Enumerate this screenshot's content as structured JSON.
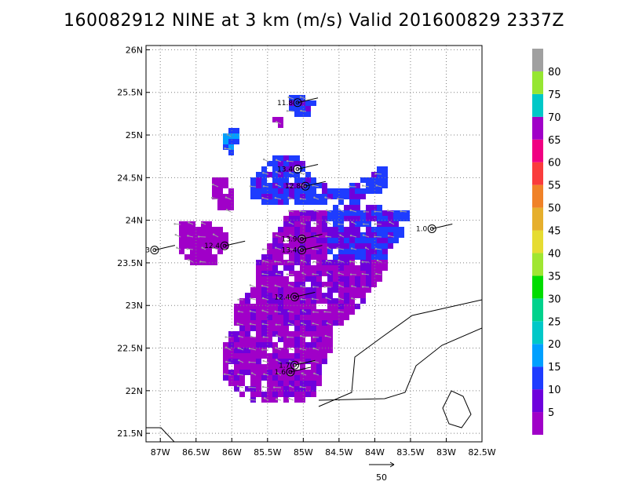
{
  "title": "160082912 NINE at 3 km (m/s) Valid 201600829 2337Z",
  "map": {
    "lon_range": [
      -87.2,
      -82.5
    ],
    "lat_range": [
      21.4,
      26.05
    ],
    "lon_ticks": [
      {
        "v": -87.0,
        "label": "87W"
      },
      {
        "v": -86.5,
        "label": "86.5W"
      },
      {
        "v": -86.0,
        "label": "86W"
      },
      {
        "v": -85.5,
        "label": "85.5W"
      },
      {
        "v": -85.0,
        "label": "85W"
      },
      {
        "v": -84.5,
        "label": "84.5W"
      },
      {
        "v": -84.0,
        "label": "84W"
      },
      {
        "v": -83.5,
        "label": "83.5W"
      },
      {
        "v": -83.0,
        "label": "83W"
      },
      {
        "v": -82.5,
        "label": "82.5W"
      }
    ],
    "lat_ticks": [
      {
        "v": 21.5,
        "label": "21.5N"
      },
      {
        "v": 22.0,
        "label": "22N"
      },
      {
        "v": 22.5,
        "label": "22.5N"
      },
      {
        "v": 23.0,
        "label": "23N"
      },
      {
        "v": 23.5,
        "label": "23.5N"
      },
      {
        "v": 24.0,
        "label": "24N"
      },
      {
        "v": 24.5,
        "label": "24.5N"
      },
      {
        "v": 25.0,
        "label": "25N"
      },
      {
        "v": 25.5,
        "label": "25.5N"
      },
      {
        "v": 26.0,
        "label": "26N"
      }
    ],
    "grid": true
  },
  "colorbar": {
    "levels": [
      "5",
      "10",
      "15",
      "20",
      "25",
      "30",
      "35",
      "40",
      "45",
      "50",
      "55",
      "60",
      "65",
      "70",
      "75",
      "80"
    ],
    "colors": [
      "#a000c8",
      "#6e00dc",
      "#1e3cff",
      "#00a0ff",
      "#00c8c8",
      "#00d28c",
      "#00dc00",
      "#a0e632",
      "#e6dc32",
      "#e6af2d",
      "#f08228",
      "#fa3c3c",
      "#f00082",
      "#a000c8",
      "#00c8c8",
      "#96e632",
      "#a0a0a0"
    ]
  },
  "observations": [
    {
      "label": "11.8",
      "lon": -85.08,
      "lat": 25.38
    },
    {
      "label": "13.4",
      "lon": -85.08,
      "lat": 24.6
    },
    {
      "label": "12.8",
      "lon": -84.97,
      "lat": 24.4
    },
    {
      "label": "3",
      "lon": -87.08,
      "lat": 23.65
    },
    {
      "label": "12.4",
      "lon": -86.1,
      "lat": 23.7
    },
    {
      "label": "13.9",
      "lon": -85.02,
      "lat": 23.78
    },
    {
      "label": "13.4",
      "lon": -85.02,
      "lat": 23.65
    },
    {
      "label": "1.0",
      "lon": -83.2,
      "lat": 23.9
    },
    {
      "label": "12.4",
      "lon": -85.12,
      "lat": 23.1
    },
    {
      "label": "1.7",
      "lon": -85.12,
      "lat": 22.3
    },
    {
      "label": "1.6",
      "lon": -85.18,
      "lat": 22.22
    }
  ],
  "reference_vector": {
    "label": "50"
  },
  "colors": {
    "coast": "#000000",
    "grid": "#7f7f7f",
    "vector": "#a0a0a0"
  }
}
